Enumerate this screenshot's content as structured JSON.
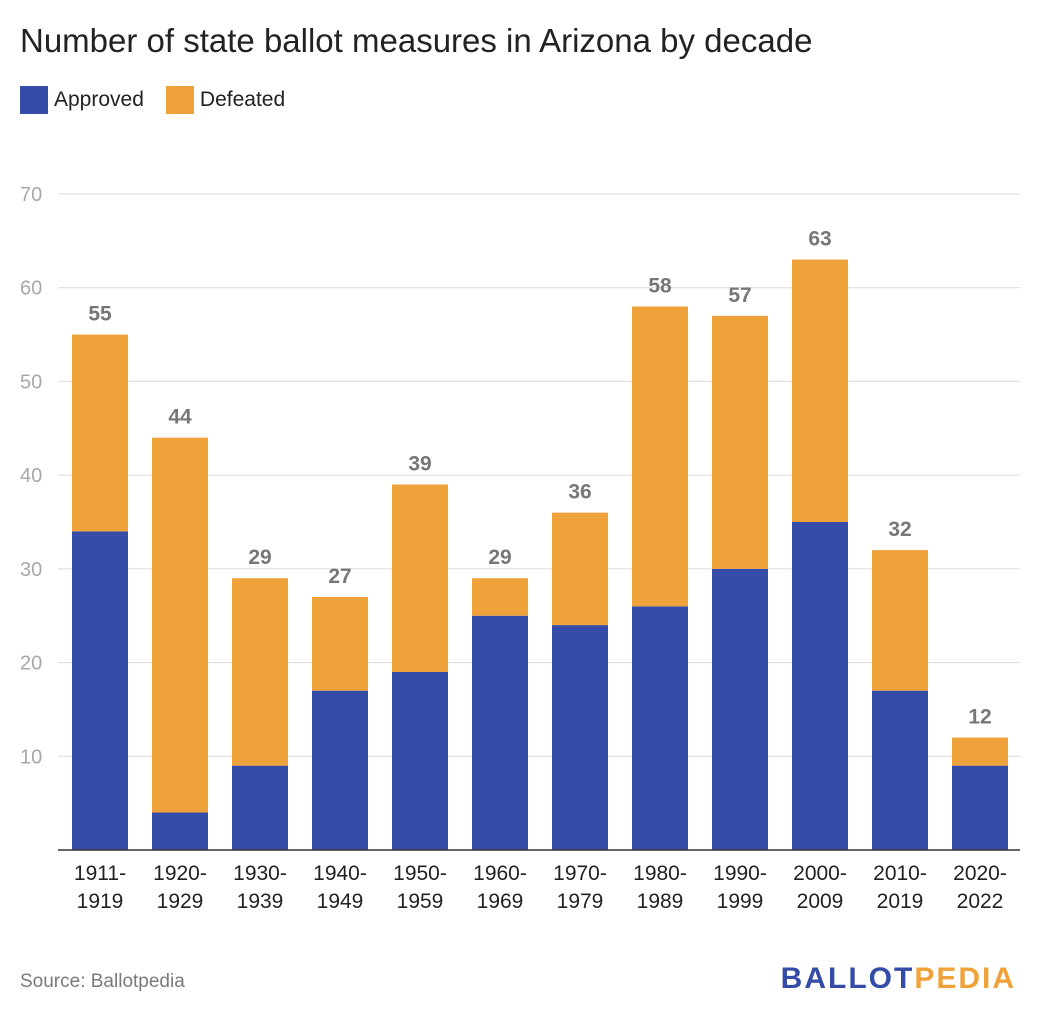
{
  "chart_data": {
    "type": "bar",
    "stacked": true,
    "title": "Number of state ballot measures in Arizona by decade",
    "categories": [
      [
        "1911-",
        "1919"
      ],
      [
        "1920-",
        "1929"
      ],
      [
        "1930-",
        "1939"
      ],
      [
        "1940-",
        "1949"
      ],
      [
        "1950-",
        "1959"
      ],
      [
        "1960-",
        "1969"
      ],
      [
        "1970-",
        "1979"
      ],
      [
        "1980-",
        "1989"
      ],
      [
        "1990-",
        "1999"
      ],
      [
        "2000-",
        "2009"
      ],
      [
        "2010-",
        "2019"
      ],
      [
        "2020-",
        "2022"
      ]
    ],
    "series": [
      {
        "name": "Approved",
        "color": "#344ca8",
        "values": [
          34,
          4,
          9,
          17,
          19,
          25,
          24,
          26,
          30,
          35,
          17,
          9
        ]
      },
      {
        "name": "Defeated",
        "color": "#f0a23a",
        "values": [
          21,
          40,
          20,
          10,
          20,
          4,
          12,
          32,
          27,
          28,
          15,
          3
        ]
      }
    ],
    "totals": [
      55,
      44,
      29,
      27,
      39,
      29,
      36,
      58,
      57,
      63,
      32,
      12
    ],
    "ylim": [
      0,
      70
    ],
    "yticks": [
      10,
      20,
      30,
      40,
      50,
      60,
      70
    ],
    "grid": true,
    "legend_position": "top-left"
  },
  "source": "Source: Ballotpedia",
  "brand": {
    "part1": "BALLOT",
    "part2": "PEDIA",
    "color1": "#344ca8",
    "color2": "#f0a23a"
  }
}
